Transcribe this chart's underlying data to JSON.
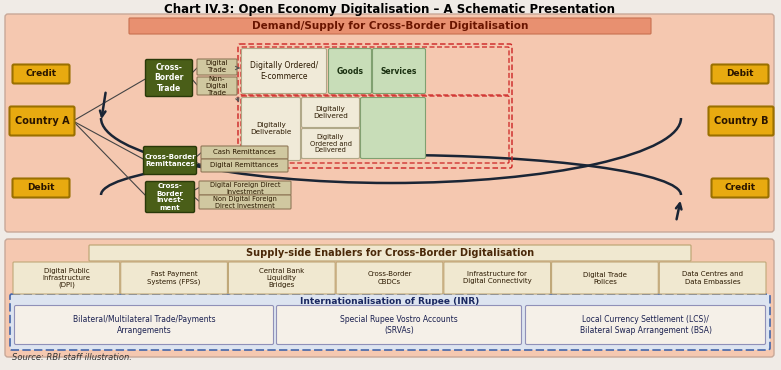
{
  "title": "Chart IV.3: Open Economy Digitalisation – A Schematic Presentation",
  "bg_color": "#f0ebe6",
  "top_section_bg": "#f5c8b0",
  "bottom_section_bg": "#f5c8b0",
  "demand_supply_label": "Demand/Supply for Cross-Border Digitalisation",
  "supply_side_label": "Supply-side Enablers for Cross-Border Digitalisation",
  "inr_label": "Internationalisation of Rupee (INR)",
  "source_text": "Source: RBI staff illustration.",
  "yellow_color": "#e8aa10",
  "dark_green": "#4a5e18",
  "light_tan": "#d0c8a0",
  "light_green_box": "#c8ddb8",
  "cream_box": "#f0ead8",
  "arrow_color": "#1a2535",
  "dashed_red": "#cc2222",
  "dashed_blue": "#4466aa",
  "inr_bg": "#dde4f0"
}
